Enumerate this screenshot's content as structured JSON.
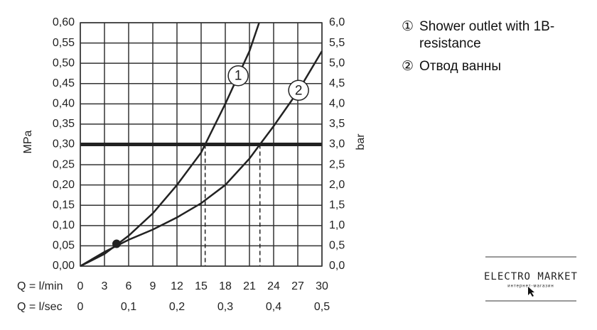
{
  "chart_data": {
    "type": "line",
    "y_label": "MPa",
    "y2_label": "bar",
    "x_label": "Q = l/min",
    "x2_label": "Q = l/sec",
    "xlim": [
      0,
      30
    ],
    "xticks": [
      0,
      3,
      6,
      9,
      12,
      15,
      18,
      21,
      24,
      27,
      30
    ],
    "x2lim": [
      0,
      0.5
    ],
    "x2ticks": [
      0,
      {
        "value": 0.1,
        "label": "0,1"
      },
      {
        "value": 0.2,
        "label": "0,2"
      },
      {
        "value": 0.3,
        "label": "0,3"
      },
      {
        "value": 0.4,
        "label": "0,4"
      },
      {
        "value": 0.5,
        "label": "0,5"
      }
    ],
    "ylim": [
      0,
      0.6
    ],
    "yticks": [
      {
        "value": 0,
        "label": "0,00"
      },
      {
        "value": 0.05,
        "label": "0,05"
      },
      {
        "value": 0.1,
        "label": "0,10"
      },
      {
        "value": 0.15,
        "label": "0,15"
      },
      {
        "value": 0.2,
        "label": "0,20"
      },
      {
        "value": 0.25,
        "label": "0,25"
      },
      {
        "value": 0.3,
        "label": "0,30"
      },
      {
        "value": 0.35,
        "label": "0,35"
      },
      {
        "value": 0.4,
        "label": "0,40"
      },
      {
        "value": 0.45,
        "label": "0,45"
      },
      {
        "value": 0.5,
        "label": "0,50"
      },
      {
        "value": 0.55,
        "label": "0,55"
      },
      {
        "value": 0.6,
        "label": "0,60"
      }
    ],
    "y2lim": [
      0,
      6
    ],
    "y2ticks": [
      {
        "value": 0,
        "label": "0,0"
      },
      {
        "value": 0.5,
        "label": "0,5"
      },
      {
        "value": 1,
        "label": "1,0"
      },
      {
        "value": 1.5,
        "label": "1,5"
      },
      {
        "value": 2,
        "label": "2,0"
      },
      {
        "value": 2.5,
        "label": "2,5"
      },
      {
        "value": 3,
        "label": "3,0"
      },
      {
        "value": 3.5,
        "label": "3,5"
      },
      {
        "value": 4,
        "label": "4,0"
      },
      {
        "value": 4.5,
        "label": "4,5"
      },
      {
        "value": 5,
        "label": "5,0"
      },
      {
        "value": 5.5,
        "label": "5,5"
      },
      {
        "value": 6,
        "label": "6,0"
      }
    ],
    "grid": true,
    "series": [
      {
        "name": "Shower outlet with 1B-resistance",
        "marker": "①",
        "curve_label": "1",
        "color": "#222222",
        "x": [
          0,
          3,
          6,
          9,
          12,
          15,
          15.5,
          18,
          21,
          22.2
        ],
        "values": [
          0,
          0.03,
          0.075,
          0.13,
          0.2,
          0.28,
          0.3,
          0.4,
          0.53,
          0.6
        ]
      },
      {
        "name": "Отвод ванны",
        "marker": "②",
        "curve_label": "2",
        "color": "#222222",
        "x": [
          0,
          3,
          6,
          9,
          12,
          15,
          18,
          21,
          22.3,
          24,
          27,
          30
        ],
        "values": [
          0,
          0.035,
          0.065,
          0.09,
          0.12,
          0.155,
          0.2,
          0.265,
          0.3,
          0.345,
          0.43,
          0.53
        ]
      }
    ],
    "reference_line": 0.3,
    "drop_lines": [
      15.5,
      22.3
    ],
    "point": [
      4.5,
      0.055
    ]
  },
  "logo": {
    "title": "ELECTRO MARKET",
    "subtitle": "интернет-магазин"
  }
}
